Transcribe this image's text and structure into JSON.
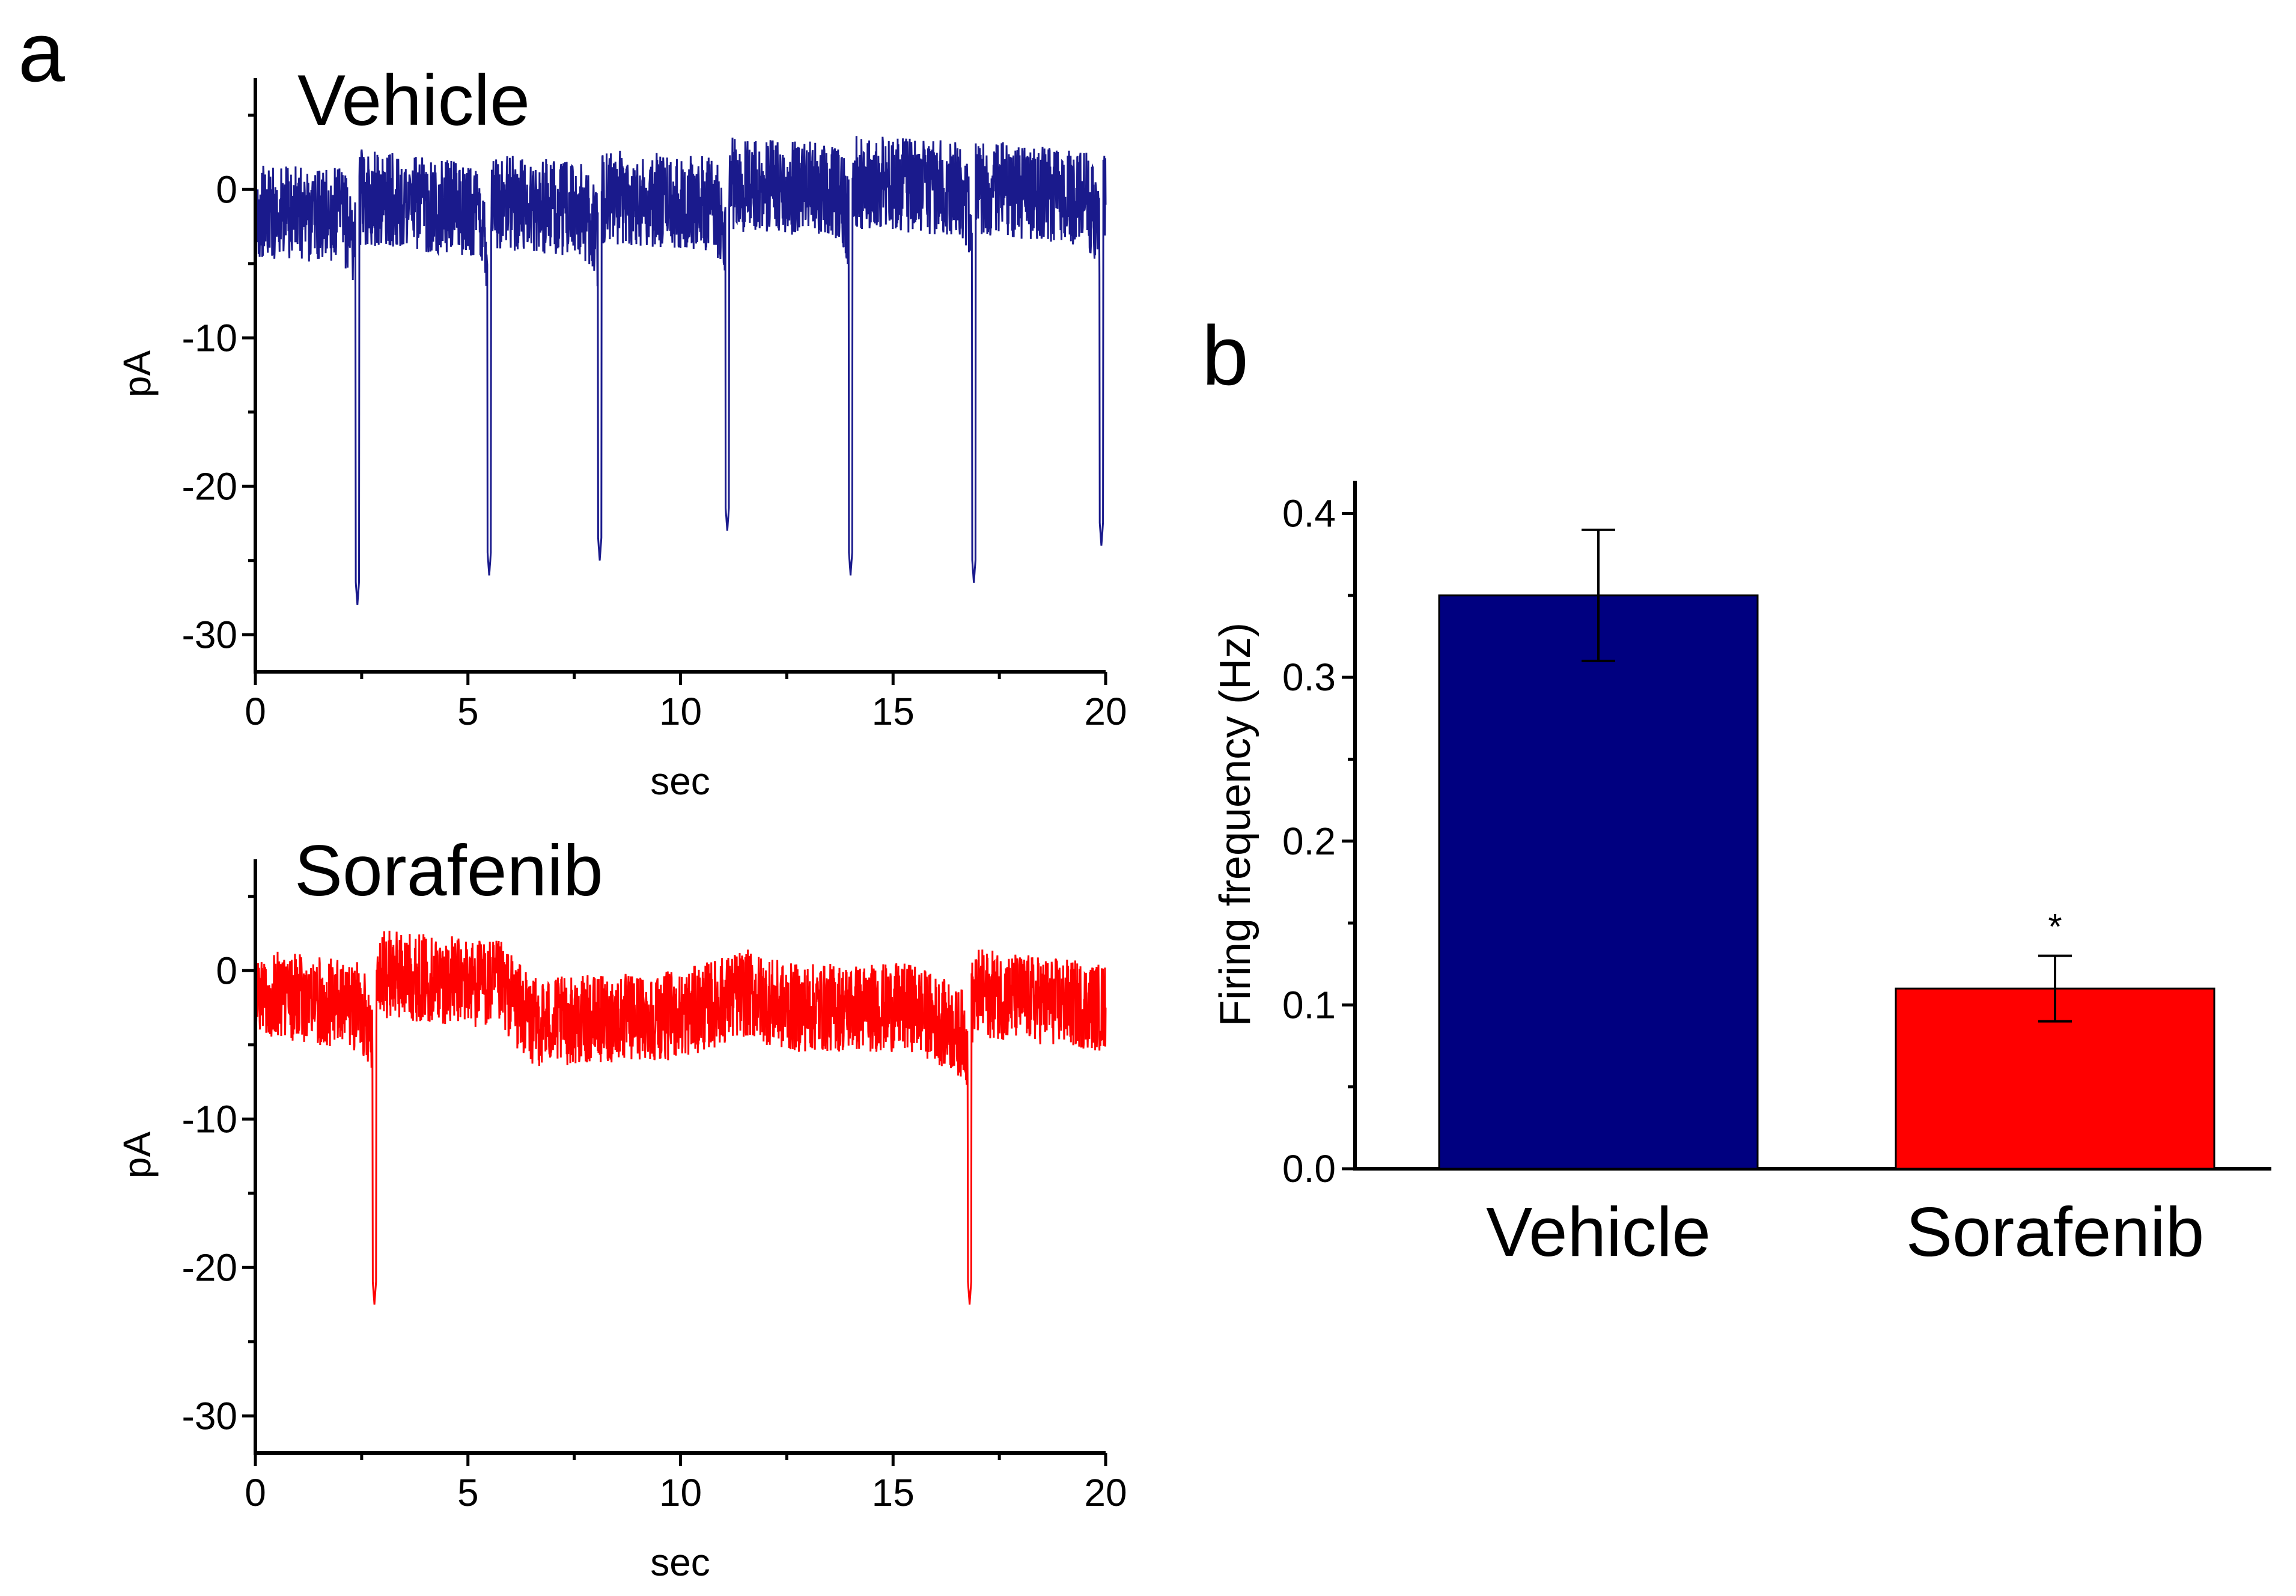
{
  "panels": {
    "a_label": "a",
    "b_label": "b"
  },
  "chart_data": [
    {
      "type": "line",
      "id": "vehicle-trace",
      "title": "Vehicle",
      "xlabel": "sec",
      "ylabel": "pA",
      "xlim": [
        0,
        20
      ],
      "ylim": [
        -32.5,
        7.5
      ],
      "xticks": [
        0,
        5,
        10,
        15,
        20
      ],
      "yticks": [
        0,
        -10,
        -20,
        -30
      ],
      "color": "#1a1a8c",
      "baseline_offsets": [
        [
          0,
          -1.5
        ],
        [
          2.3,
          -1.8
        ],
        [
          2.5,
          -0.5
        ],
        [
          5.4,
          -1.5
        ],
        [
          5.6,
          -0.8
        ],
        [
          8.0,
          -1.5
        ],
        [
          8.2,
          -0.5
        ],
        [
          11.0,
          -1.0
        ],
        [
          11.2,
          0.3
        ],
        [
          13.9,
          0.0
        ],
        [
          14.1,
          0.5
        ],
        [
          16.8,
          0.0
        ],
        [
          17.0,
          0.2
        ],
        [
          19.8,
          -0.8
        ],
        [
          20,
          -0.5
        ]
      ],
      "spikes": [
        {
          "t": 2.4,
          "peak": -28
        },
        {
          "t": 5.5,
          "peak": -26
        },
        {
          "t": 8.1,
          "peak": -25
        },
        {
          "t": 11.1,
          "peak": -23
        },
        {
          "t": 14.0,
          "peak": -26
        },
        {
          "t": 16.9,
          "peak": -26.5
        },
        {
          "t": 19.9,
          "peak": -24
        }
      ],
      "noise_amplitude": 3.2
    },
    {
      "type": "line",
      "id": "sorafenib-trace",
      "title": "Sorafenib",
      "xlabel": "sec",
      "ylabel": "pA",
      "xlim": [
        0,
        20
      ],
      "ylim": [
        -32.5,
        7.5
      ],
      "xticks": [
        0,
        5,
        10,
        15,
        20
      ],
      "yticks": [
        0,
        -10,
        -20,
        -30
      ],
      "color": "#ff0000",
      "baseline_offsets": [
        [
          0,
          -1.5
        ],
        [
          2.6,
          -2.5
        ],
        [
          3.0,
          -0.2
        ],
        [
          5.8,
          -1.0
        ],
        [
          6.5,
          -3.5
        ],
        [
          10.0,
          -3.0
        ],
        [
          11.5,
          -1.5
        ],
        [
          12.5,
          -2.5
        ],
        [
          15.5,
          -2.5
        ],
        [
          16.5,
          -4.0
        ],
        [
          17.0,
          -1.5
        ],
        [
          20,
          -2.5
        ]
      ],
      "spikes": [
        {
          "t": 2.8,
          "peak": -22.5
        },
        {
          "t": 16.8,
          "peak": -22.5
        }
      ],
      "noise_amplitude": 3.0
    },
    {
      "type": "bar",
      "id": "firing-frequency",
      "ylabel": "Firing frequency (Hz)",
      "categories": [
        "Vehicle",
        "Sorafenib"
      ],
      "values": [
        0.35,
        0.11
      ],
      "errors": [
        0.04,
        0.02
      ],
      "colors": [
        "#000080",
        "#ff0000"
      ],
      "ylim": [
        0,
        0.42
      ],
      "yticks": [
        "0.0",
        "0.1",
        "0.2",
        "0.3",
        "0.4"
      ],
      "annotations": [
        "",
        "*"
      ]
    }
  ]
}
